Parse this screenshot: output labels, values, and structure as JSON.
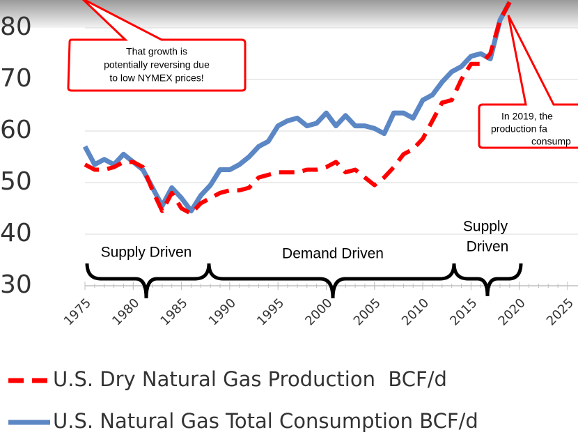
{
  "chart_data": {
    "type": "line",
    "x": [
      1975,
      1976,
      1977,
      1978,
      1979,
      1980,
      1981,
      1982,
      1983,
      1984,
      1985,
      1986,
      1987,
      1988,
      1989,
      1990,
      1991,
      1992,
      1993,
      1994,
      1995,
      1996,
      1997,
      1998,
      1999,
      2000,
      2001,
      2002,
      2003,
      2004,
      2005,
      2006,
      2007,
      2008,
      2009,
      2010,
      2011,
      2012,
      2013,
      2014,
      2015,
      2016,
      2017,
      2018,
      2019
    ],
    "series": [
      {
        "name": "U.S. Dry Natural Gas Production  BCF/d",
        "color": "#ff0000",
        "values": [
          53.5,
          52.5,
          52.5,
          53,
          54,
          54,
          53,
          48.5,
          44.5,
          48,
          45,
          44,
          46,
          47,
          48,
          48.5,
          48.5,
          49,
          51,
          51.5,
          52,
          52,
          52,
          52.5,
          52.5,
          53,
          54,
          52,
          52.5,
          51,
          49.5,
          51,
          53,
          55.5,
          56.5,
          58.5,
          62,
          65.5,
          66,
          70,
          73,
          73,
          75,
          81.5,
          85
        ]
      },
      {
        "name": "U.S. Natural Gas Total Consumption BCF/d",
        "color": "#5b87c5",
        "values": [
          57,
          53.5,
          54.5,
          53.5,
          55.5,
          54,
          52.5,
          49,
          45.5,
          49,
          47,
          44.5,
          47.5,
          49.5,
          52.5,
          52.5,
          53.5,
          55,
          57,
          58,
          61,
          62,
          62.5,
          61,
          61.5,
          63.5,
          61,
          63,
          61,
          61,
          60.5,
          59.5,
          63.5,
          63.5,
          62.5,
          66,
          67,
          69.5,
          71.5,
          72.5,
          74.5,
          75,
          74,
          81.5,
          85
        ]
      }
    ],
    "xlim": [
      1975,
      2025
    ],
    "xticks": [
      1975,
      1980,
      1985,
      1990,
      1995,
      2000,
      2005,
      2010,
      2015,
      2020,
      2025
    ],
    "ylim": [
      30,
      85
    ],
    "yticks": [
      30,
      40,
      50,
      60,
      70,
      80
    ],
    "annotations": [
      "That growth is",
      "potentially reversing due",
      "to low NYMEX prices!",
      "In 2019, the",
      "production fa",
      "consump",
      "Supply Driven",
      "Demand Driven",
      "Supply",
      "Driven"
    ]
  }
}
